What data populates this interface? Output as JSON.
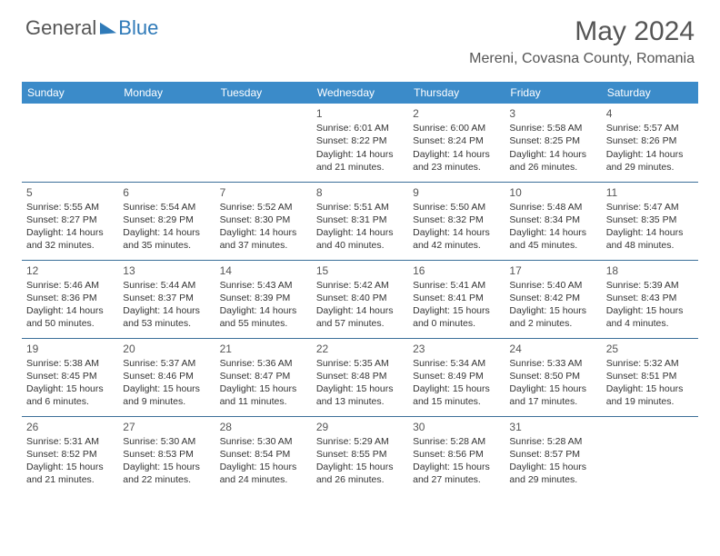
{
  "logo": {
    "text1": "General",
    "text2": "Blue"
  },
  "title": "May 2024",
  "location": "Mereni, Covasna County, Romania",
  "colors": {
    "header_bg": "#3b8bc9",
    "header_text": "#ffffff",
    "border": "#3b6f99",
    "text": "#333333",
    "title_text": "#555555",
    "logo_blue": "#2f7ab8"
  },
  "weekdays": [
    "Sunday",
    "Monday",
    "Tuesday",
    "Wednesday",
    "Thursday",
    "Friday",
    "Saturday"
  ],
  "days": [
    {
      "n": "1",
      "sr": "6:01 AM",
      "ss": "8:22 PM",
      "dl": "14 hours and 21 minutes."
    },
    {
      "n": "2",
      "sr": "6:00 AM",
      "ss": "8:24 PM",
      "dl": "14 hours and 23 minutes."
    },
    {
      "n": "3",
      "sr": "5:58 AM",
      "ss": "8:25 PM",
      "dl": "14 hours and 26 minutes."
    },
    {
      "n": "4",
      "sr": "5:57 AM",
      "ss": "8:26 PM",
      "dl": "14 hours and 29 minutes."
    },
    {
      "n": "5",
      "sr": "5:55 AM",
      "ss": "8:27 PM",
      "dl": "14 hours and 32 minutes."
    },
    {
      "n": "6",
      "sr": "5:54 AM",
      "ss": "8:29 PM",
      "dl": "14 hours and 35 minutes."
    },
    {
      "n": "7",
      "sr": "5:52 AM",
      "ss": "8:30 PM",
      "dl": "14 hours and 37 minutes."
    },
    {
      "n": "8",
      "sr": "5:51 AM",
      "ss": "8:31 PM",
      "dl": "14 hours and 40 minutes."
    },
    {
      "n": "9",
      "sr": "5:50 AM",
      "ss": "8:32 PM",
      "dl": "14 hours and 42 minutes."
    },
    {
      "n": "10",
      "sr": "5:48 AM",
      "ss": "8:34 PM",
      "dl": "14 hours and 45 minutes."
    },
    {
      "n": "11",
      "sr": "5:47 AM",
      "ss": "8:35 PM",
      "dl": "14 hours and 48 minutes."
    },
    {
      "n": "12",
      "sr": "5:46 AM",
      "ss": "8:36 PM",
      "dl": "14 hours and 50 minutes."
    },
    {
      "n": "13",
      "sr": "5:44 AM",
      "ss": "8:37 PM",
      "dl": "14 hours and 53 minutes."
    },
    {
      "n": "14",
      "sr": "5:43 AM",
      "ss": "8:39 PM",
      "dl": "14 hours and 55 minutes."
    },
    {
      "n": "15",
      "sr": "5:42 AM",
      "ss": "8:40 PM",
      "dl": "14 hours and 57 minutes."
    },
    {
      "n": "16",
      "sr": "5:41 AM",
      "ss": "8:41 PM",
      "dl": "15 hours and 0 minutes."
    },
    {
      "n": "17",
      "sr": "5:40 AM",
      "ss": "8:42 PM",
      "dl": "15 hours and 2 minutes."
    },
    {
      "n": "18",
      "sr": "5:39 AM",
      "ss": "8:43 PM",
      "dl": "15 hours and 4 minutes."
    },
    {
      "n": "19",
      "sr": "5:38 AM",
      "ss": "8:45 PM",
      "dl": "15 hours and 6 minutes."
    },
    {
      "n": "20",
      "sr": "5:37 AM",
      "ss": "8:46 PM",
      "dl": "15 hours and 9 minutes."
    },
    {
      "n": "21",
      "sr": "5:36 AM",
      "ss": "8:47 PM",
      "dl": "15 hours and 11 minutes."
    },
    {
      "n": "22",
      "sr": "5:35 AM",
      "ss": "8:48 PM",
      "dl": "15 hours and 13 minutes."
    },
    {
      "n": "23",
      "sr": "5:34 AM",
      "ss": "8:49 PM",
      "dl": "15 hours and 15 minutes."
    },
    {
      "n": "24",
      "sr": "5:33 AM",
      "ss": "8:50 PM",
      "dl": "15 hours and 17 minutes."
    },
    {
      "n": "25",
      "sr": "5:32 AM",
      "ss": "8:51 PM",
      "dl": "15 hours and 19 minutes."
    },
    {
      "n": "26",
      "sr": "5:31 AM",
      "ss": "8:52 PM",
      "dl": "15 hours and 21 minutes."
    },
    {
      "n": "27",
      "sr": "5:30 AM",
      "ss": "8:53 PM",
      "dl": "15 hours and 22 minutes."
    },
    {
      "n": "28",
      "sr": "5:30 AM",
      "ss": "8:54 PM",
      "dl": "15 hours and 24 minutes."
    },
    {
      "n": "29",
      "sr": "5:29 AM",
      "ss": "8:55 PM",
      "dl": "15 hours and 26 minutes."
    },
    {
      "n": "30",
      "sr": "5:28 AM",
      "ss": "8:56 PM",
      "dl": "15 hours and 27 minutes."
    },
    {
      "n": "31",
      "sr": "5:28 AM",
      "ss": "8:57 PM",
      "dl": "15 hours and 29 minutes."
    }
  ],
  "labels": {
    "sunrise": "Sunrise:",
    "sunset": "Sunset:",
    "daylight": "Daylight:"
  },
  "layout": {
    "first_day_col": 3,
    "cols": 7
  }
}
